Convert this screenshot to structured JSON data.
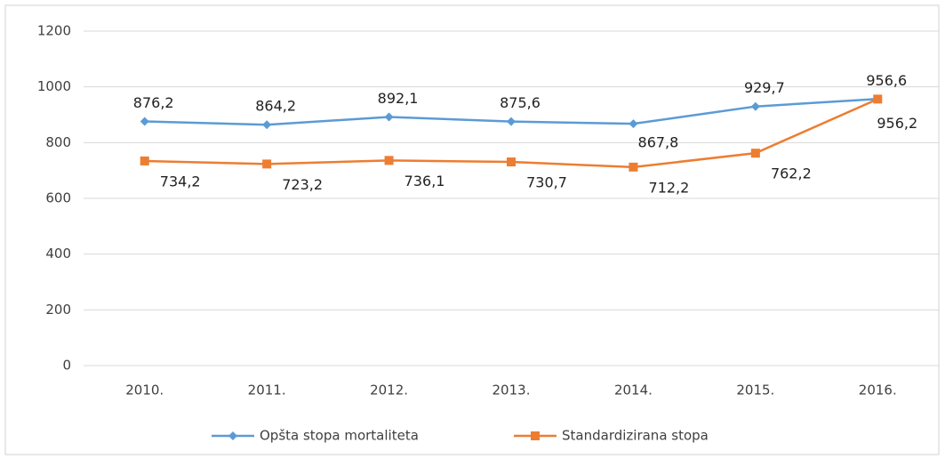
{
  "chart_data": {
    "type": "line",
    "categories": [
      "2010.",
      "2011.",
      "2012.",
      "2013.",
      "2014.",
      "2015.",
      "2016."
    ],
    "series": [
      {
        "name": "Opšta stopa mortaliteta",
        "color": "#5b9bd5",
        "marker": "diamond",
        "values": [
          876.2,
          864.2,
          892.1,
          875.6,
          867.8,
          929.7,
          956.6
        ],
        "value_labels": [
          "876,2",
          "864,2",
          "892,1",
          "875,6",
          "867,8",
          "929,7",
          "956,6"
        ]
      },
      {
        "name": "Standardizirana stopa",
        "color": "#ed7d31",
        "marker": "square",
        "values": [
          734.2,
          723.2,
          736.1,
          730.7,
          712.2,
          762.2,
          956.2
        ],
        "value_labels": [
          "734,2",
          "723,2",
          "736,1",
          "730,7",
          "712,2",
          "762,2",
          "956,2"
        ]
      }
    ],
    "ylim": [
      0,
      1200
    ],
    "yticks": [
      0,
      200,
      400,
      600,
      800,
      1000,
      1200
    ],
    "grid": true,
    "legend": "bottom"
  }
}
